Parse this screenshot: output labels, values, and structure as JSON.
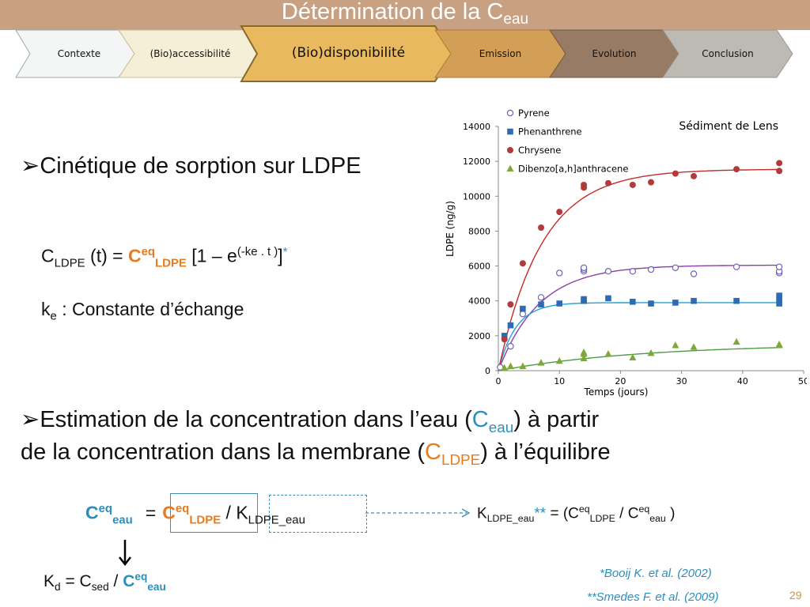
{
  "slide": {
    "title_main": "Détermination de la C",
    "title_sub": "eau",
    "page_number": "29"
  },
  "nav": {
    "tabs": [
      {
        "label": "Contexte",
        "color": "#f4f6f6"
      },
      {
        "label": "(Bio)accessibilité",
        "color": "#f6efd8"
      },
      {
        "label": "(Bio)disponibilité",
        "color": "#e8b95e",
        "active": true
      },
      {
        "label": "Emission",
        "color": "#d39f57"
      },
      {
        "label": "Evolution",
        "color": "#977b64"
      },
      {
        "label": "Conclusion",
        "color": "#bdb9b3"
      }
    ]
  },
  "content": {
    "bullet1": "Cinétique de sorption sur LDPE",
    "eq1": {
      "c": "C",
      "ldpe": "LDPE",
      "t": " (t) = ",
      "ceq_c": "C",
      "ceq_sup": "eq",
      "ceq_sub": "LDPE",
      "bracket": " [1 – e",
      "exp": "(-ke . t )",
      "close": "]",
      "star": "*"
    },
    "ke": {
      "k": "k",
      "sub": "e",
      "text": " : Constante d’échange"
    },
    "bullet2_line1_a": "Estimation de la concentration dans l’eau (",
    "bullet2_line1_c": "C",
    "bullet2_line1_sub": "eau",
    "bullet2_line1_b": ") à partir",
    "bullet2_line2_a": "de la concentration dans la membrane (",
    "bullet2_line2_c": "C",
    "bullet2_line2_sub": "LDPE",
    "bullet2_line2_b": ") à l’équilibre",
    "eq2": {
      "c": "C",
      "sup": "eq",
      "sub": "eau",
      "equals": "=",
      "c2": "C",
      "sup2": "eq",
      "sub2": "LDPE",
      "slash": " / ",
      "k": "K",
      "ksub": "LDPE_eau"
    },
    "kdef": {
      "k": "K",
      "ksub": "LDPE_eau",
      "stars": "**",
      "eq": " = (C",
      "sup1": "eq",
      "sub1": "LDPE",
      "mid": " / C",
      "sup2": "eq",
      "sub2": "eau",
      "end": " )"
    },
    "kd": {
      "k": "K",
      "ksub": "d",
      "eq": "  = C",
      "csub": "sed",
      "slash": " / ",
      "c": "C",
      "sup": "eq",
      "sub": "eau"
    },
    "ref1": "*Booij K. et al. (2002)",
    "ref2": "**Smedes F. et al. (2009)"
  },
  "chart_data": {
    "type": "scatter",
    "title": "Sédiment de Lens",
    "xlabel": "Temps (jours)",
    "ylabel": "LDPE (ng/g)",
    "xlim": [
      0,
      50
    ],
    "ylim": [
      0,
      14000
    ],
    "xticks": [
      0,
      10,
      20,
      30,
      40,
      50
    ],
    "yticks": [
      0,
      2000,
      4000,
      6000,
      8000,
      10000,
      12000,
      14000
    ],
    "legend_position": "top-left",
    "series": [
      {
        "name": "Pyrene",
        "marker": "open-circle",
        "color": "#6f63b6",
        "curve_color": "#8a3fa8",
        "plateau": 6050,
        "k": 0.15,
        "points": [
          [
            0.3,
            200
          ],
          [
            2,
            1400
          ],
          [
            4,
            3250
          ],
          [
            7,
            4200
          ],
          [
            10,
            5600
          ],
          [
            14,
            5700
          ],
          [
            14,
            5800
          ],
          [
            14,
            5900
          ],
          [
            18,
            5700
          ],
          [
            22,
            5700
          ],
          [
            25,
            5800
          ],
          [
            29,
            5900
          ],
          [
            32,
            5550
          ],
          [
            39,
            5950
          ],
          [
            46,
            5600
          ],
          [
            46,
            5700
          ],
          [
            46,
            5950
          ]
        ]
      },
      {
        "name": "Phenanthrene",
        "marker": "square",
        "color": "#2f6bb2",
        "curve_color": "#2a9fd0",
        "plateau": 3900,
        "k": 0.35,
        "points": [
          [
            1,
            2000
          ],
          [
            2,
            2600
          ],
          [
            4,
            3550
          ],
          [
            7,
            3800
          ],
          [
            10,
            3850
          ],
          [
            14,
            4000
          ],
          [
            14,
            4100
          ],
          [
            18,
            4150
          ],
          [
            22,
            3950
          ],
          [
            25,
            3850
          ],
          [
            29,
            3900
          ],
          [
            32,
            4000
          ],
          [
            39,
            4000
          ],
          [
            46,
            3850
          ],
          [
            46,
            4100
          ],
          [
            46,
            4300
          ]
        ]
      },
      {
        "name": "Chrysene",
        "marker": "circle",
        "color": "#b23a3a",
        "curve_color": "#c62a2a",
        "plateau": 11550,
        "k": 0.14,
        "points": [
          [
            1,
            1800
          ],
          [
            2,
            3800
          ],
          [
            4,
            6150
          ],
          [
            7,
            8200
          ],
          [
            10,
            9100
          ],
          [
            14,
            10500
          ],
          [
            14,
            10650
          ],
          [
            18,
            10750
          ],
          [
            22,
            10650
          ],
          [
            25,
            10800
          ],
          [
            29,
            11300
          ],
          [
            32,
            11150
          ],
          [
            39,
            11550
          ],
          [
            46,
            11450
          ],
          [
            46,
            11900
          ]
        ]
      },
      {
        "name": "Dibenzo[a,h]anthracene",
        "marker": "triangle",
        "color": "#7fa83a",
        "curve_color": "#4f9c46",
        "plateau": 1550,
        "k": 0.042,
        "points": [
          [
            1,
            150
          ],
          [
            2,
            250
          ],
          [
            4,
            250
          ],
          [
            7,
            450
          ],
          [
            10,
            550
          ],
          [
            14,
            700
          ],
          [
            14,
            950
          ],
          [
            14,
            1050
          ],
          [
            18,
            950
          ],
          [
            22,
            750
          ],
          [
            25,
            1000
          ],
          [
            29,
            1450
          ],
          [
            32,
            1350
          ],
          [
            39,
            1650
          ],
          [
            46,
            1450
          ],
          [
            46,
            1500
          ]
        ]
      }
    ]
  }
}
